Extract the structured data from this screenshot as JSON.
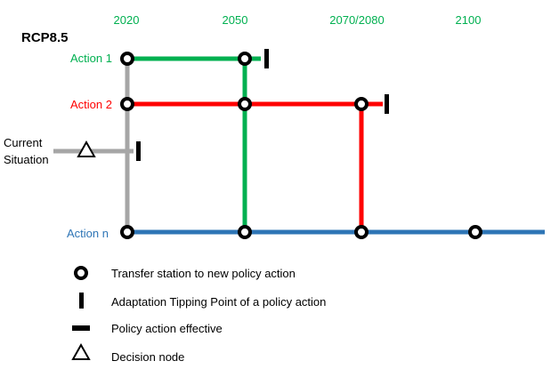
{
  "title": "RCP8.5",
  "years": [
    "2020",
    "2050",
    "2070/2080",
    "2100"
  ],
  "current_situation": [
    "Current",
    "Situation"
  ],
  "actions": [
    {
      "label": "Action 1",
      "color": "#00b050"
    },
    {
      "label": "Action 2",
      "color": "#ff0000"
    },
    {
      "label": "Action n",
      "color": "#2e75b6"
    }
  ],
  "colors": {
    "year": "#00b050",
    "grey_line": "#a6a6a6",
    "text": "#000000"
  },
  "legend": [
    {
      "icon": "transfer-station-circle",
      "label": "Transfer station to new policy action"
    },
    {
      "icon": "tipping-point-bar",
      "label": "Adaptation Tipping Point of a policy action"
    },
    {
      "icon": "effective-dash",
      "label": "Policy action effective"
    },
    {
      "icon": "decision-triangle",
      "label": "Decision node"
    }
  ]
}
